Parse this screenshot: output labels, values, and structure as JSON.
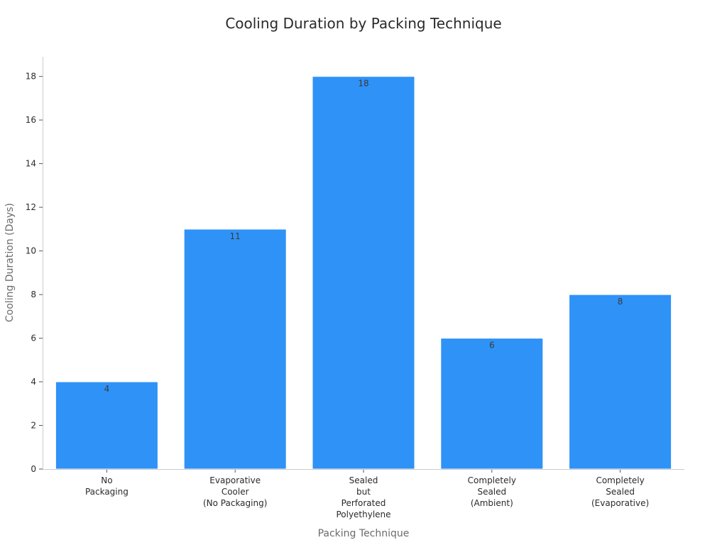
{
  "chart_data": {
    "type": "bar",
    "title": "Cooling Duration by Packing Technique",
    "xlabel": "Packing Technique",
    "ylabel": "Cooling Duration (Days)",
    "categories": [
      [
        "No",
        "Packaging"
      ],
      [
        "Evaporative",
        "Cooler",
        "(No Packaging)"
      ],
      [
        "Sealed",
        "but",
        "Perforated",
        "Polyethylene"
      ],
      [
        "Completely",
        "Sealed",
        "(Ambient)"
      ],
      [
        "Completely",
        "Sealed",
        "(Evaporative)"
      ]
    ],
    "values": [
      4,
      11,
      18,
      6,
      8
    ],
    "data_labels": [
      "4",
      "11",
      "18",
      "6",
      "8"
    ],
    "yticks": [
      0,
      2,
      4,
      6,
      8,
      10,
      12,
      14,
      16,
      18
    ],
    "ylim": [
      0,
      18.9
    ],
    "grid": false,
    "legend": "none",
    "colors": {
      "bar": "#2f92f7",
      "bar_edge": "#ffffff"
    }
  }
}
